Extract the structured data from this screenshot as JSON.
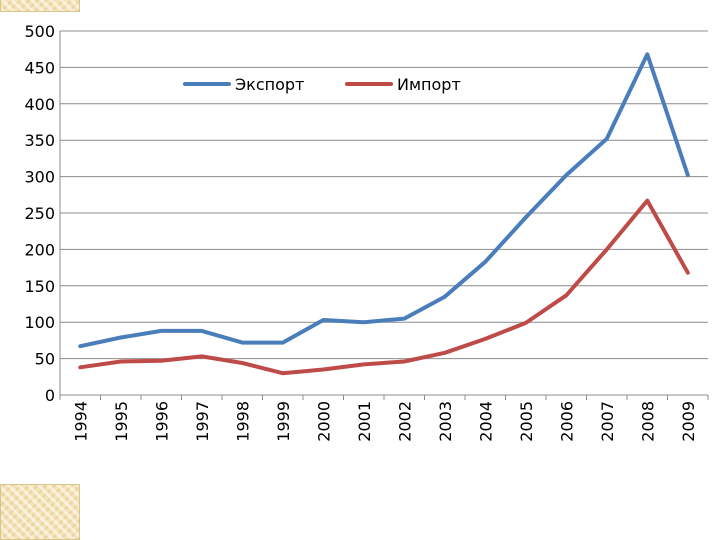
{
  "chart_data": {
    "type": "line",
    "title": "",
    "xlabel": "",
    "ylabel": "",
    "categories": [
      "1994",
      "1995",
      "1996",
      "1997",
      "1998",
      "1999",
      "2000",
      "2001",
      "2002",
      "2003",
      "2004",
      "2005",
      "2006",
      "2007",
      "2008",
      "2009"
    ],
    "ylim": [
      0,
      500
    ],
    "yticks": [
      0,
      50,
      100,
      150,
      200,
      250,
      300,
      350,
      400,
      450,
      500
    ],
    "ytick_labels": [
      "0",
      "50",
      "100",
      "150",
      "200",
      "250",
      "300",
      "350",
      "400",
      "450",
      "500"
    ],
    "grid": "horizontal",
    "legend_position": "top-center",
    "series": [
      {
        "name": "Экспорт",
        "color": "#4a7ebb",
        "values": [
          67,
          79,
          88,
          88,
          72,
          72,
          103,
          100,
          105,
          135,
          183,
          244,
          302,
          352,
          468,
          302
        ]
      },
      {
        "name": "Импорт",
        "color": "#be4b48",
        "values": [
          38,
          46,
          47,
          53,
          44,
          30,
          35,
          42,
          46,
          58,
          77,
          99,
          137,
          200,
          267,
          168
        ]
      }
    ]
  }
}
